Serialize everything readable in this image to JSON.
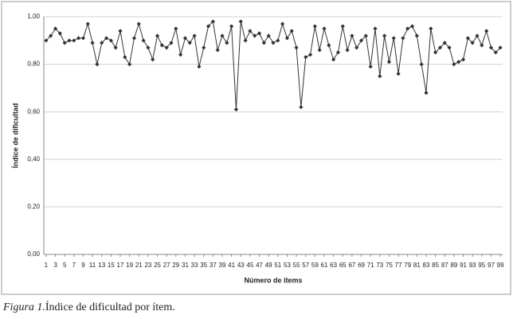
{
  "chart_data": {
    "type": "line",
    "y_label": "Índice de dificultad",
    "x_label": "Número de ítems",
    "caption_label": "Figura 1.",
    "caption_text": "Índice de dificultad por ítem.",
    "x": [
      1,
      2,
      3,
      4,
      5,
      6,
      7,
      8,
      9,
      10,
      11,
      12,
      13,
      14,
      15,
      16,
      17,
      18,
      19,
      20,
      21,
      22,
      23,
      24,
      25,
      26,
      27,
      28,
      29,
      30,
      31,
      32,
      33,
      34,
      35,
      36,
      37,
      38,
      39,
      40,
      41,
      42,
      43,
      44,
      45,
      46,
      47,
      48,
      49,
      50,
      51,
      52,
      53,
      54,
      55,
      56,
      57,
      58,
      59,
      60,
      61,
      62,
      63,
      64,
      65,
      66,
      67,
      68,
      69,
      70,
      71,
      72,
      73,
      74,
      75,
      76,
      77,
      78,
      79,
      80,
      81,
      82,
      83,
      84,
      85,
      86,
      87,
      88,
      89,
      90,
      91,
      92,
      93,
      94,
      95,
      96,
      97,
      98,
      99
    ],
    "values": [
      0.9,
      0.92,
      0.95,
      0.93,
      0.89,
      0.9,
      0.9,
      0.91,
      0.91,
      0.97,
      0.89,
      0.8,
      0.89,
      0.91,
      0.9,
      0.87,
      0.94,
      0.83,
      0.8,
      0.91,
      0.97,
      0.9,
      0.87,
      0.82,
      0.92,
      0.88,
      0.87,
      0.89,
      0.95,
      0.84,
      0.91,
      0.89,
      0.92,
      0.79,
      0.87,
      0.96,
      0.98,
      0.86,
      0.92,
      0.89,
      0.96,
      0.61,
      0.98,
      0.9,
      0.94,
      0.92,
      0.93,
      0.89,
      0.92,
      0.89,
      0.9,
      0.97,
      0.91,
      0.94,
      0.87,
      0.62,
      0.83,
      0.84,
      0.96,
      0.86,
      0.95,
      0.88,
      0.82,
      0.85,
      0.96,
      0.86,
      0.92,
      0.87,
      0.9,
      0.92,
      0.79,
      0.95,
      0.75,
      0.92,
      0.81,
      0.91,
      0.76,
      0.91,
      0.95,
      0.96,
      0.92,
      0.8,
      0.68,
      0.95,
      0.85,
      0.87,
      0.89,
      0.87,
      0.8,
      0.81,
      0.82,
      0.91,
      0.89,
      0.92,
      0.88,
      0.94,
      0.87,
      0.85,
      0.87
    ],
    "color": "#333333",
    "xlim": [
      0.5,
      99.5
    ],
    "xticks": [
      1,
      3,
      5,
      7,
      9,
      11,
      13,
      15,
      17,
      19,
      21,
      23,
      25,
      27,
      29,
      31,
      33,
      35,
      37,
      39,
      41,
      43,
      45,
      47,
      49,
      51,
      53,
      55,
      57,
      59,
      61,
      63,
      65,
      67,
      69,
      71,
      73,
      75,
      77,
      79,
      81,
      83,
      85,
      87,
      89,
      91,
      93,
      95,
      97,
      99
    ],
    "ylim": [
      0,
      1
    ],
    "yticks": [
      {
        "value": 0,
        "label": "0,00"
      },
      {
        "value": 0.2,
        "label": "0,20"
      },
      {
        "value": 0.4,
        "label": "0,40"
      },
      {
        "value": 0.6,
        "label": "0,60"
      },
      {
        "value": 0.8,
        "label": "0,80"
      },
      {
        "value": 1,
        "label": "1,00"
      }
    ],
    "grid": true
  }
}
